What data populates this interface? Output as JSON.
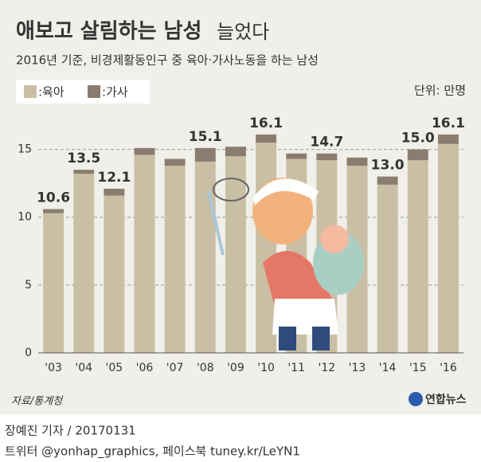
{
  "chart_data": {
    "type": "bar",
    "stacked": true,
    "title": "애보고 살림하는 남성",
    "title_suffix": "늘었다",
    "subtitle": "2016년 기준, 비경제활동인구 중 육아·가사노동을 하는 남성",
    "unit": "단위: 만명",
    "source": "자료/통계청",
    "logo": "연합뉴스",
    "byline": "장예진 기자 / 20170131",
    "social": "트위터 @yonhap_graphics, 페이스북 tuney.kr/LeYN1",
    "categories": [
      "'03",
      "'04",
      "'05",
      "'06",
      "'07",
      "'08",
      "'09",
      "'10",
      "'11",
      "'12",
      "'13",
      "'14",
      "'15",
      "'16"
    ],
    "series": [
      {
        "name": ":육아",
        "color": "#c9bfa5",
        "values": [
          10.3,
          13.2,
          11.6,
          14.6,
          13.8,
          14.1,
          14.5,
          15.5,
          14.3,
          14.2,
          13.8,
          12.4,
          14.2,
          15.4
        ]
      },
      {
        "name": ":가사",
        "color": "#8a7d6f",
        "values": [
          0.3,
          0.3,
          0.5,
          0.5,
          0.5,
          1.0,
          0.7,
          0.6,
          0.4,
          0.5,
          0.6,
          0.6,
          0.8,
          0.7
        ]
      }
    ],
    "total_labels": [
      "10.6",
      "13.5",
      "12.1",
      null,
      null,
      "15.1",
      null,
      "16.1",
      null,
      "14.7",
      null,
      "13.0",
      "15.0",
      "16.1"
    ],
    "ylim": [
      0,
      17.5
    ],
    "yticks": [
      0,
      5,
      10,
      15
    ],
    "grid": true
  }
}
